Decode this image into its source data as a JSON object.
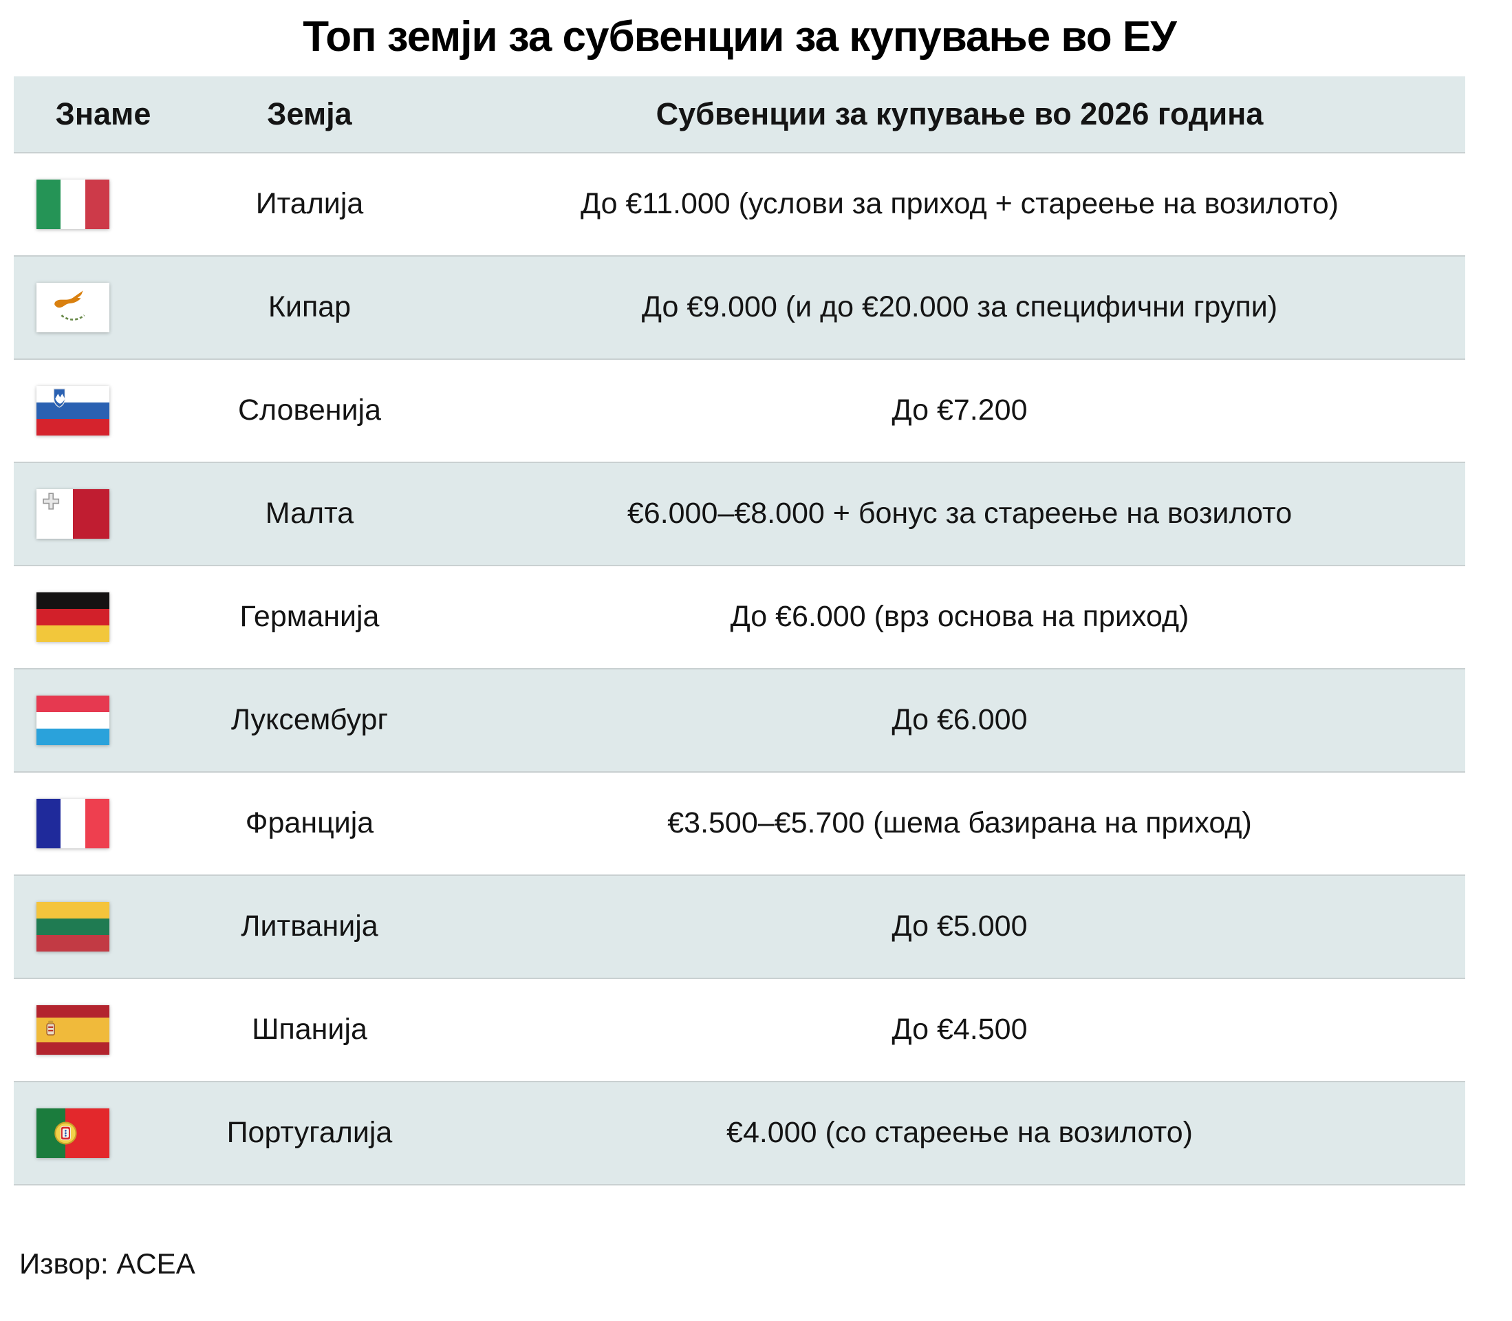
{
  "colors": {
    "row_alt": "#dfe9ea",
    "separator": "#c9d0d1",
    "text": "#141414"
  },
  "chart_data": {
    "type": "table",
    "title": "Топ земји за субвенции за купување во ЕУ",
    "columns": [
      "Знаме",
      "Земја",
      "Субвенции за купување во 2026 година"
    ],
    "source": "Извор: ACEA",
    "rows": [
      {
        "country": "Италија",
        "subsidy_text": "До €11.000 (услови за приход + стареење на возилото)",
        "max_subsidy_eur": 11000,
        "flag": {
          "name": "italy",
          "dir": "v",
          "stripes": [
            "#259456",
            "#ffffff",
            "#cd3a49"
          ]
        }
      },
      {
        "country": "Кипар",
        "subsidy_text": "До €9.000 (и до €20.000 за специфични групи)",
        "max_subsidy_eur": 9000,
        "special_max_eur": 20000,
        "flag": {
          "name": "cyprus",
          "dir": "h",
          "stripes": [
            "#ffffff"
          ],
          "emblem": "cyprus"
        }
      },
      {
        "country": "Словенија",
        "subsidy_text": "До €7.200",
        "max_subsidy_eur": 7200,
        "flag": {
          "name": "slovenia",
          "dir": "h",
          "stripes": [
            "#ffffff",
            "#2a61b2",
            "#d5232d"
          ],
          "emblem": "slovenia"
        }
      },
      {
        "country": "Малта",
        "subsidy_text": "€6.000–€8.000 + бонус за стареење на возилото",
        "min_subsidy_eur": 6000,
        "max_subsidy_eur": 8000,
        "flag": {
          "name": "malta",
          "dir": "v",
          "stripes": [
            "#ffffff",
            "#c01d31"
          ],
          "emblem": "malta"
        }
      },
      {
        "country": "Германија",
        "subsidy_text": "До €6.000 (врз основа на приход)",
        "max_subsidy_eur": 6000,
        "flag": {
          "name": "germany",
          "dir": "h",
          "stripes": [
            "#141212",
            "#d2202a",
            "#f2c73b"
          ]
        }
      },
      {
        "country": "Луксембург",
        "subsidy_text": "До €6.000",
        "max_subsidy_eur": 6000,
        "flag": {
          "name": "luxembourg",
          "dir": "h",
          "stripes": [
            "#e63950",
            "#ffffff",
            "#2aa2db"
          ]
        }
      },
      {
        "country": "Франција",
        "subsidy_text": "€3.500–€5.700 (шема базирана на приход)",
        "min_subsidy_eur": 3500,
        "max_subsidy_eur": 5700,
        "flag": {
          "name": "france",
          "dir": "v",
          "stripes": [
            "#1f2a9b",
            "#ffffff",
            "#ee3f4f"
          ]
        }
      },
      {
        "country": "Литванија",
        "subsidy_text": "До €5.000",
        "max_subsidy_eur": 5000,
        "flag": {
          "name": "lithuania",
          "dir": "h",
          "stripes": [
            "#f4c43c",
            "#1f7b52",
            "#c23a44"
          ]
        }
      },
      {
        "country": "Шпанија",
        "subsidy_text": "До €4.500",
        "max_subsidy_eur": 4500,
        "flag": {
          "name": "spain",
          "dir": "h",
          "stripes": [
            "#b3242e",
            "#f0ba3b",
            "#b3242e"
          ],
          "weights": [
            1,
            2,
            1
          ],
          "emblem": "spain"
        }
      },
      {
        "country": "Португалија",
        "subsidy_text": "€4.000 (со стареење на возилото)",
        "max_subsidy_eur": 4000,
        "flag": {
          "name": "portugal",
          "dir": "v",
          "stripes": [
            "#1b7c3d",
            "#e3282c"
          ],
          "weights": [
            2,
            3
          ],
          "emblem": "portugal"
        }
      }
    ]
  }
}
